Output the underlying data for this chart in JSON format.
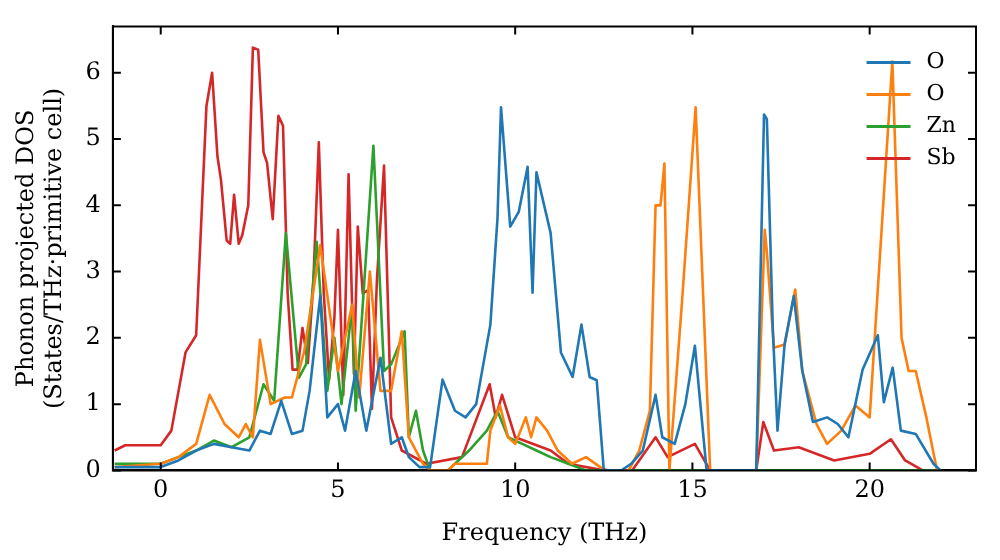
{
  "chart_data": {
    "type": "line",
    "xlabel": "Frequency (THz)",
    "ylabel": "Phonon projected DOS\n(States/THz·primitive cell)",
    "xlim": [
      -1.35,
      23
    ],
    "ylim": [
      0,
      6.7
    ],
    "xticks": [
      0,
      5,
      10,
      15,
      20
    ],
    "yticks": [
      0,
      1,
      2,
      3,
      4,
      5,
      6
    ],
    "grid": false,
    "legend": "top right",
    "marker": "none",
    "line_style": "solid",
    "series": [
      {
        "name": "O",
        "color": "#1f77b4",
        "x": [
          -1.3,
          0,
          0.5,
          1,
          1.5,
          2,
          2.5,
          2.8,
          3.1,
          3.4,
          3.7,
          4,
          4.2,
          4.5,
          4.7,
          5,
          5.2,
          5.5,
          5.8,
          6.2,
          6.5,
          6.8,
          7,
          7.3,
          7.6,
          7.95,
          8.3,
          8.6,
          8.9,
          9.3,
          9.5,
          9.6,
          9.86,
          10.1,
          10.35,
          10.49,
          10.6,
          11,
          11.29,
          11.62,
          11.87,
          12.1,
          12.3,
          12.5,
          13,
          13.27,
          13.6,
          13.96,
          14.15,
          14.5,
          14.8,
          15.07,
          15.4,
          16.8,
          17.02,
          17.1,
          17.27,
          17.4,
          17.6,
          17.86,
          18.1,
          18.4,
          18.8,
          19.1,
          19.4,
          19.8,
          20.23,
          20.4,
          20.65,
          20.88,
          21.3,
          21.8,
          22
        ],
        "values": [
          0.05,
          0.05,
          0.15,
          0.3,
          0.4,
          0.35,
          0.3,
          0.6,
          0.55,
          1.05,
          0.55,
          0.6,
          1.2,
          2.63,
          0.8,
          1.0,
          0.6,
          1.5,
          0.6,
          1.7,
          0.4,
          0.5,
          0.2,
          0.05,
          0.05,
          1.37,
          0.9,
          0.8,
          1.0,
          2.2,
          3.8,
          5.48,
          3.68,
          3.9,
          4.58,
          2.68,
          4.5,
          3.58,
          1.78,
          1.41,
          2.2,
          1.41,
          1.36,
          0,
          0,
          0.1,
          0.3,
          1.14,
          0.5,
          0.4,
          1.0,
          1.88,
          0,
          0,
          5.37,
          5.3,
          2.1,
          0.6,
          1.9,
          2.63,
          1.5,
          0.73,
          0.8,
          0.7,
          0.5,
          1.52,
          2.04,
          1.03,
          1.55,
          0.6,
          0.55,
          0.1,
          0
        ]
      },
      {
        "name": "O",
        "color": "#ff7f0e",
        "x": [
          -1.3,
          0,
          0.5,
          1,
          1.38,
          1.8,
          2.2,
          2.4,
          2.6,
          2.8,
          3.1,
          3.5,
          3.7,
          4.05,
          4.5,
          5,
          5.4,
          5.6,
          5.9,
          6.2,
          6.5,
          6.8,
          7,
          7.4,
          7.6,
          8.1,
          8.3,
          9.2,
          9.3,
          9.57,
          9.8,
          10,
          10.3,
          10.45,
          10.6,
          10.9,
          11.2,
          11.6,
          12,
          12.4,
          12.6,
          13.2,
          13.5,
          13.8,
          13.96,
          14.1,
          14.21,
          14.35,
          14.7,
          15.09,
          15.5,
          16.8,
          17.04,
          17.1,
          17.3,
          17.6,
          17.9,
          18.1,
          18.5,
          18.8,
          19.2,
          19.6,
          20,
          20.64,
          20.9,
          21.1,
          21.3,
          21.6,
          21.9
        ],
        "values": [
          0.05,
          0.1,
          0.2,
          0.4,
          1.14,
          0.7,
          0.5,
          0.7,
          0.5,
          1.97,
          1.0,
          1.1,
          1.1,
          1.8,
          3.4,
          1.5,
          2.5,
          1.1,
          3.0,
          1.2,
          1.2,
          2.1,
          0.5,
          0.1,
          0,
          0,
          0.1,
          0.1,
          0.6,
          0.98,
          0.5,
          0.4,
          0.8,
          0.5,
          0.8,
          0.6,
          0.3,
          0.1,
          0.2,
          0.05,
          0,
          0,
          0.3,
          0.9,
          4.0,
          4.0,
          4.63,
          0,
          2.5,
          5.48,
          0,
          0,
          3.63,
          3.3,
          1.85,
          1.9,
          2.73,
          1.5,
          0.7,
          0.4,
          0.6,
          0.98,
          0.8,
          6.17,
          2.0,
          1.5,
          1.5,
          0.8,
          0
        ]
      },
      {
        "name": "Zn",
        "color": "#2ca02c",
        "x": [
          -1.3,
          0,
          0.5,
          1,
          1.5,
          2,
          2.5,
          2.9,
          3.2,
          3.53,
          3.9,
          4.1,
          4.4,
          4.7,
          4.9,
          5.1,
          5.4,
          5.5,
          6.0,
          6.3,
          6.5,
          6.88,
          7.0,
          7.2,
          7.4,
          7.6,
          8.1,
          8.3,
          8.7,
          9.2,
          9.5,
          9.8,
          10.2,
          10.6,
          11,
          11.5,
          12,
          22
        ],
        "values": [
          0.1,
          0.1,
          0.2,
          0.3,
          0.45,
          0.35,
          0.5,
          1.3,
          1.05,
          3.58,
          1.4,
          1.6,
          3.45,
          1.2,
          2.0,
          1.0,
          2.5,
          0.9,
          4.9,
          1.5,
          1.6,
          2.1,
          0.5,
          0.9,
          0.3,
          0,
          0,
          0.1,
          0.3,
          0.6,
          0.9,
          0.5,
          0.4,
          0.3,
          0.2,
          0.1,
          0,
          0
        ]
      },
      {
        "name": "Sb",
        "color": "#d62728",
        "x": [
          -1.3,
          -1,
          0,
          0.3,
          0.7,
          1.0,
          1.29,
          1.45,
          1.6,
          1.7,
          1.86,
          1.96,
          2.07,
          2.2,
          2.3,
          2.47,
          2.6,
          2.75,
          2.9,
          3.0,
          3.16,
          3.32,
          3.45,
          3.58,
          3.72,
          3.86,
          4.0,
          4.15,
          4.3,
          4.46,
          4.6,
          4.75,
          4.9,
          5.0,
          5.15,
          5.3,
          5.45,
          5.56,
          5.7,
          5.85,
          5.96,
          6.1,
          6.3,
          6.5,
          6.8,
          7.5,
          8.5,
          9.28,
          9.45,
          9.63,
          10,
          11,
          11.5,
          12.5,
          13.3,
          13.96,
          14.3,
          15.07,
          15.5,
          16.8,
          17.0,
          17.3,
          18,
          19,
          20,
          20.6,
          21,
          21.5
        ],
        "values": [
          0.3,
          0.38,
          0.38,
          0.6,
          1.78,
          2.04,
          5.5,
          6.0,
          4.74,
          4.38,
          3.47,
          3.42,
          4.16,
          3.42,
          3.55,
          4.0,
          6.38,
          6.35,
          4.8,
          4.64,
          3.79,
          5.35,
          5.2,
          2.68,
          1.52,
          1.52,
          2.15,
          1.62,
          2.77,
          4.95,
          2.67,
          1.37,
          2.31,
          3.63,
          1.14,
          4.47,
          1.46,
          3.68,
          2.67,
          2.72,
          0.93,
          2.88,
          4.6,
          0.8,
          0.3,
          0.1,
          0.2,
          1.3,
          0.8,
          1.14,
          0.5,
          0.3,
          0.1,
          0,
          0,
          0.5,
          0.2,
          0.4,
          0,
          0,
          0.73,
          0.3,
          0.35,
          0.15,
          0.25,
          0.47,
          0.15,
          0
        ]
      }
    ]
  }
}
